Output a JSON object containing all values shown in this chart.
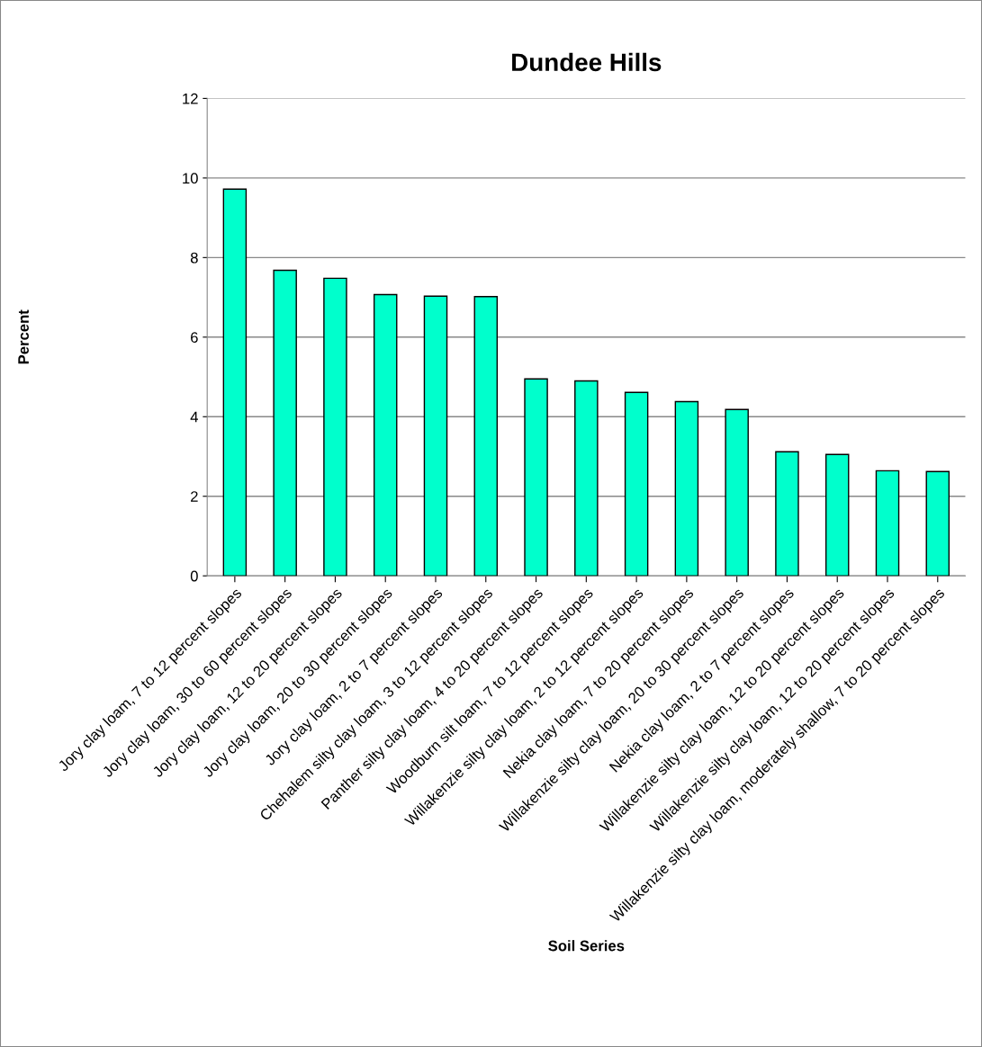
{
  "chart_data": {
    "type": "bar",
    "title": "Dundee Hills",
    "xlabel": "Soil Series",
    "ylabel": "Percent",
    "categories": [
      "Jory clay loam, 7 to 12 percent slopes",
      "Jory clay loam, 30 to 60 percent slopes",
      "Jory clay loam, 12 to 20 percent slopes",
      "Jory clay loam, 20 to 30 percent slopes",
      "Jory clay loam, 2 to 7 percent slopes",
      "Chehalem silty clay loam, 3 to 12 percent slopes",
      "Panther silty clay loam, 4 to 20 percent slopes",
      "Woodburn silt loam, 7 to 12 percent slopes",
      "Willakenzie silty clay loam, 2 to 12 percent slopes",
      "Nekia clay loam, 7 to 20 percent slopes",
      "Willakenzie silty clay loam, 20 to 30 percent slopes",
      "Nekia clay loam, 2 to 7 percent slopes",
      "Willakenzie silty clay loam, 12 to 20 percent slopes",
      "Willakenzie silty clay loam, 12 to 20 percent slopes",
      "Willakenzie silty clay loam, moderately shallow, 7 to 20 percent slopes"
    ],
    "values": [
      9.72,
      7.68,
      7.48,
      7.07,
      7.03,
      7.02,
      4.95,
      4.9,
      4.61,
      4.38,
      4.18,
      3.12,
      3.05,
      2.64,
      2.62
    ],
    "color": "#00ffcc",
    "ylim": [
      0,
      12
    ],
    "yticks": [
      0,
      2,
      4,
      6,
      8,
      10,
      12
    ],
    "grid": "y",
    "legend": false
  }
}
